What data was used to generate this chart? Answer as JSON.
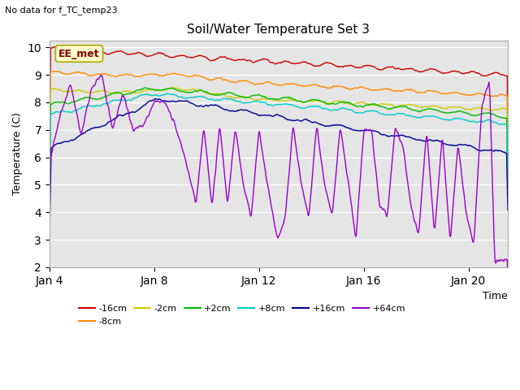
{
  "title": "Soil/Water Temperature Set 3",
  "subtitle": "No data for f_TC_temp23",
  "xlabel": "Time",
  "ylabel": "Temperature (C)",
  "ylim": [
    2.0,
    10.25
  ],
  "yticks": [
    2.0,
    3.0,
    4.0,
    5.0,
    6.0,
    7.0,
    8.0,
    9.0,
    10.0
  ],
  "xtick_positions": [
    0,
    4,
    8,
    12,
    16
  ],
  "xtick_labels": [
    "Jan 4",
    "Jan 8",
    "Jan 12",
    "Jan 16",
    "Jan 20"
  ],
  "xlim": [
    0,
    17.5
  ],
  "annotation_text": "EE_met",
  "series_colors": {
    "-16cm": "#cc0000",
    "-8cm": "#ff8800",
    "-2cm": "#cccc00",
    "+2cm": "#00bb00",
    "+8cm": "#00cccc",
    "+16cm": "#000099",
    "+64cm": "#9900cc"
  },
  "series_lw": 1.0
}
